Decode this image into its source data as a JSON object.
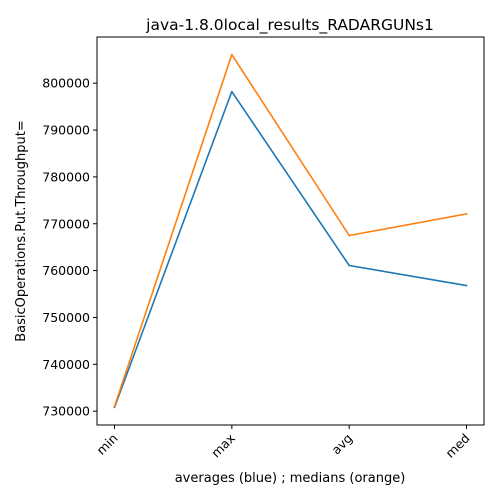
{
  "chart_data": {
    "type": "line",
    "title": "java-1.8.0local_results_RADARGUNs1",
    "xlabel": "averages (blue) ; medians (orange)",
    "ylabel": "BasicOperations.Put.Throughput=",
    "categories": [
      "min",
      "max",
      "avg",
      "med"
    ],
    "series": [
      {
        "name": "averages",
        "color": "#1f77b4",
        "values": [
          730800,
          798200,
          761100,
          756800
        ]
      },
      {
        "name": "medians",
        "color": "#ff7f0e",
        "values": [
          731000,
          806100,
          767500,
          772100
        ]
      }
    ],
    "yticks": [
      730000,
      740000,
      750000,
      760000,
      770000,
      780000,
      790000,
      800000
    ],
    "ytick_labels": [
      "730000",
      "740000",
      "750000",
      "760000",
      "770000",
      "780000",
      "790000",
      "800000"
    ],
    "ylim": [
      727050,
      809860
    ],
    "grid": false,
    "legend": "none"
  }
}
